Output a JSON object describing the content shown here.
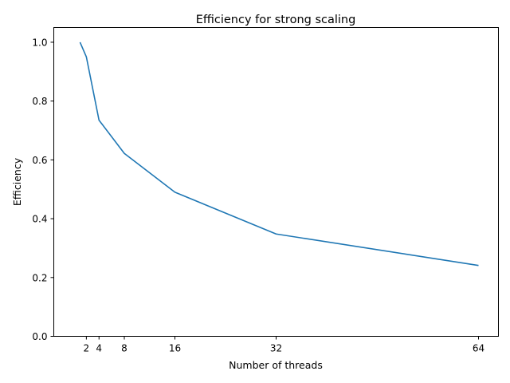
{
  "chart_data": {
    "type": "line",
    "title": "Efficiency for strong scaling",
    "xlabel": "Number of threads",
    "ylabel": "Efficiency",
    "xlim": [
      -3.15,
      67.15
    ],
    "ylim": [
      0.0,
      1.05
    ],
    "xticks": [
      2,
      4,
      8,
      16,
      32,
      64
    ],
    "yticks": [
      "0.0",
      "0.2",
      "0.4",
      "0.6",
      "0.8",
      "1.0"
    ],
    "grid": false,
    "series": [
      {
        "color": "#1f77b4",
        "x": [
          1,
          2,
          4,
          8,
          16,
          32,
          64
        ],
        "y": [
          1.0,
          0.95,
          0.735,
          0.622,
          0.49,
          0.348,
          0.241
        ]
      }
    ]
  }
}
